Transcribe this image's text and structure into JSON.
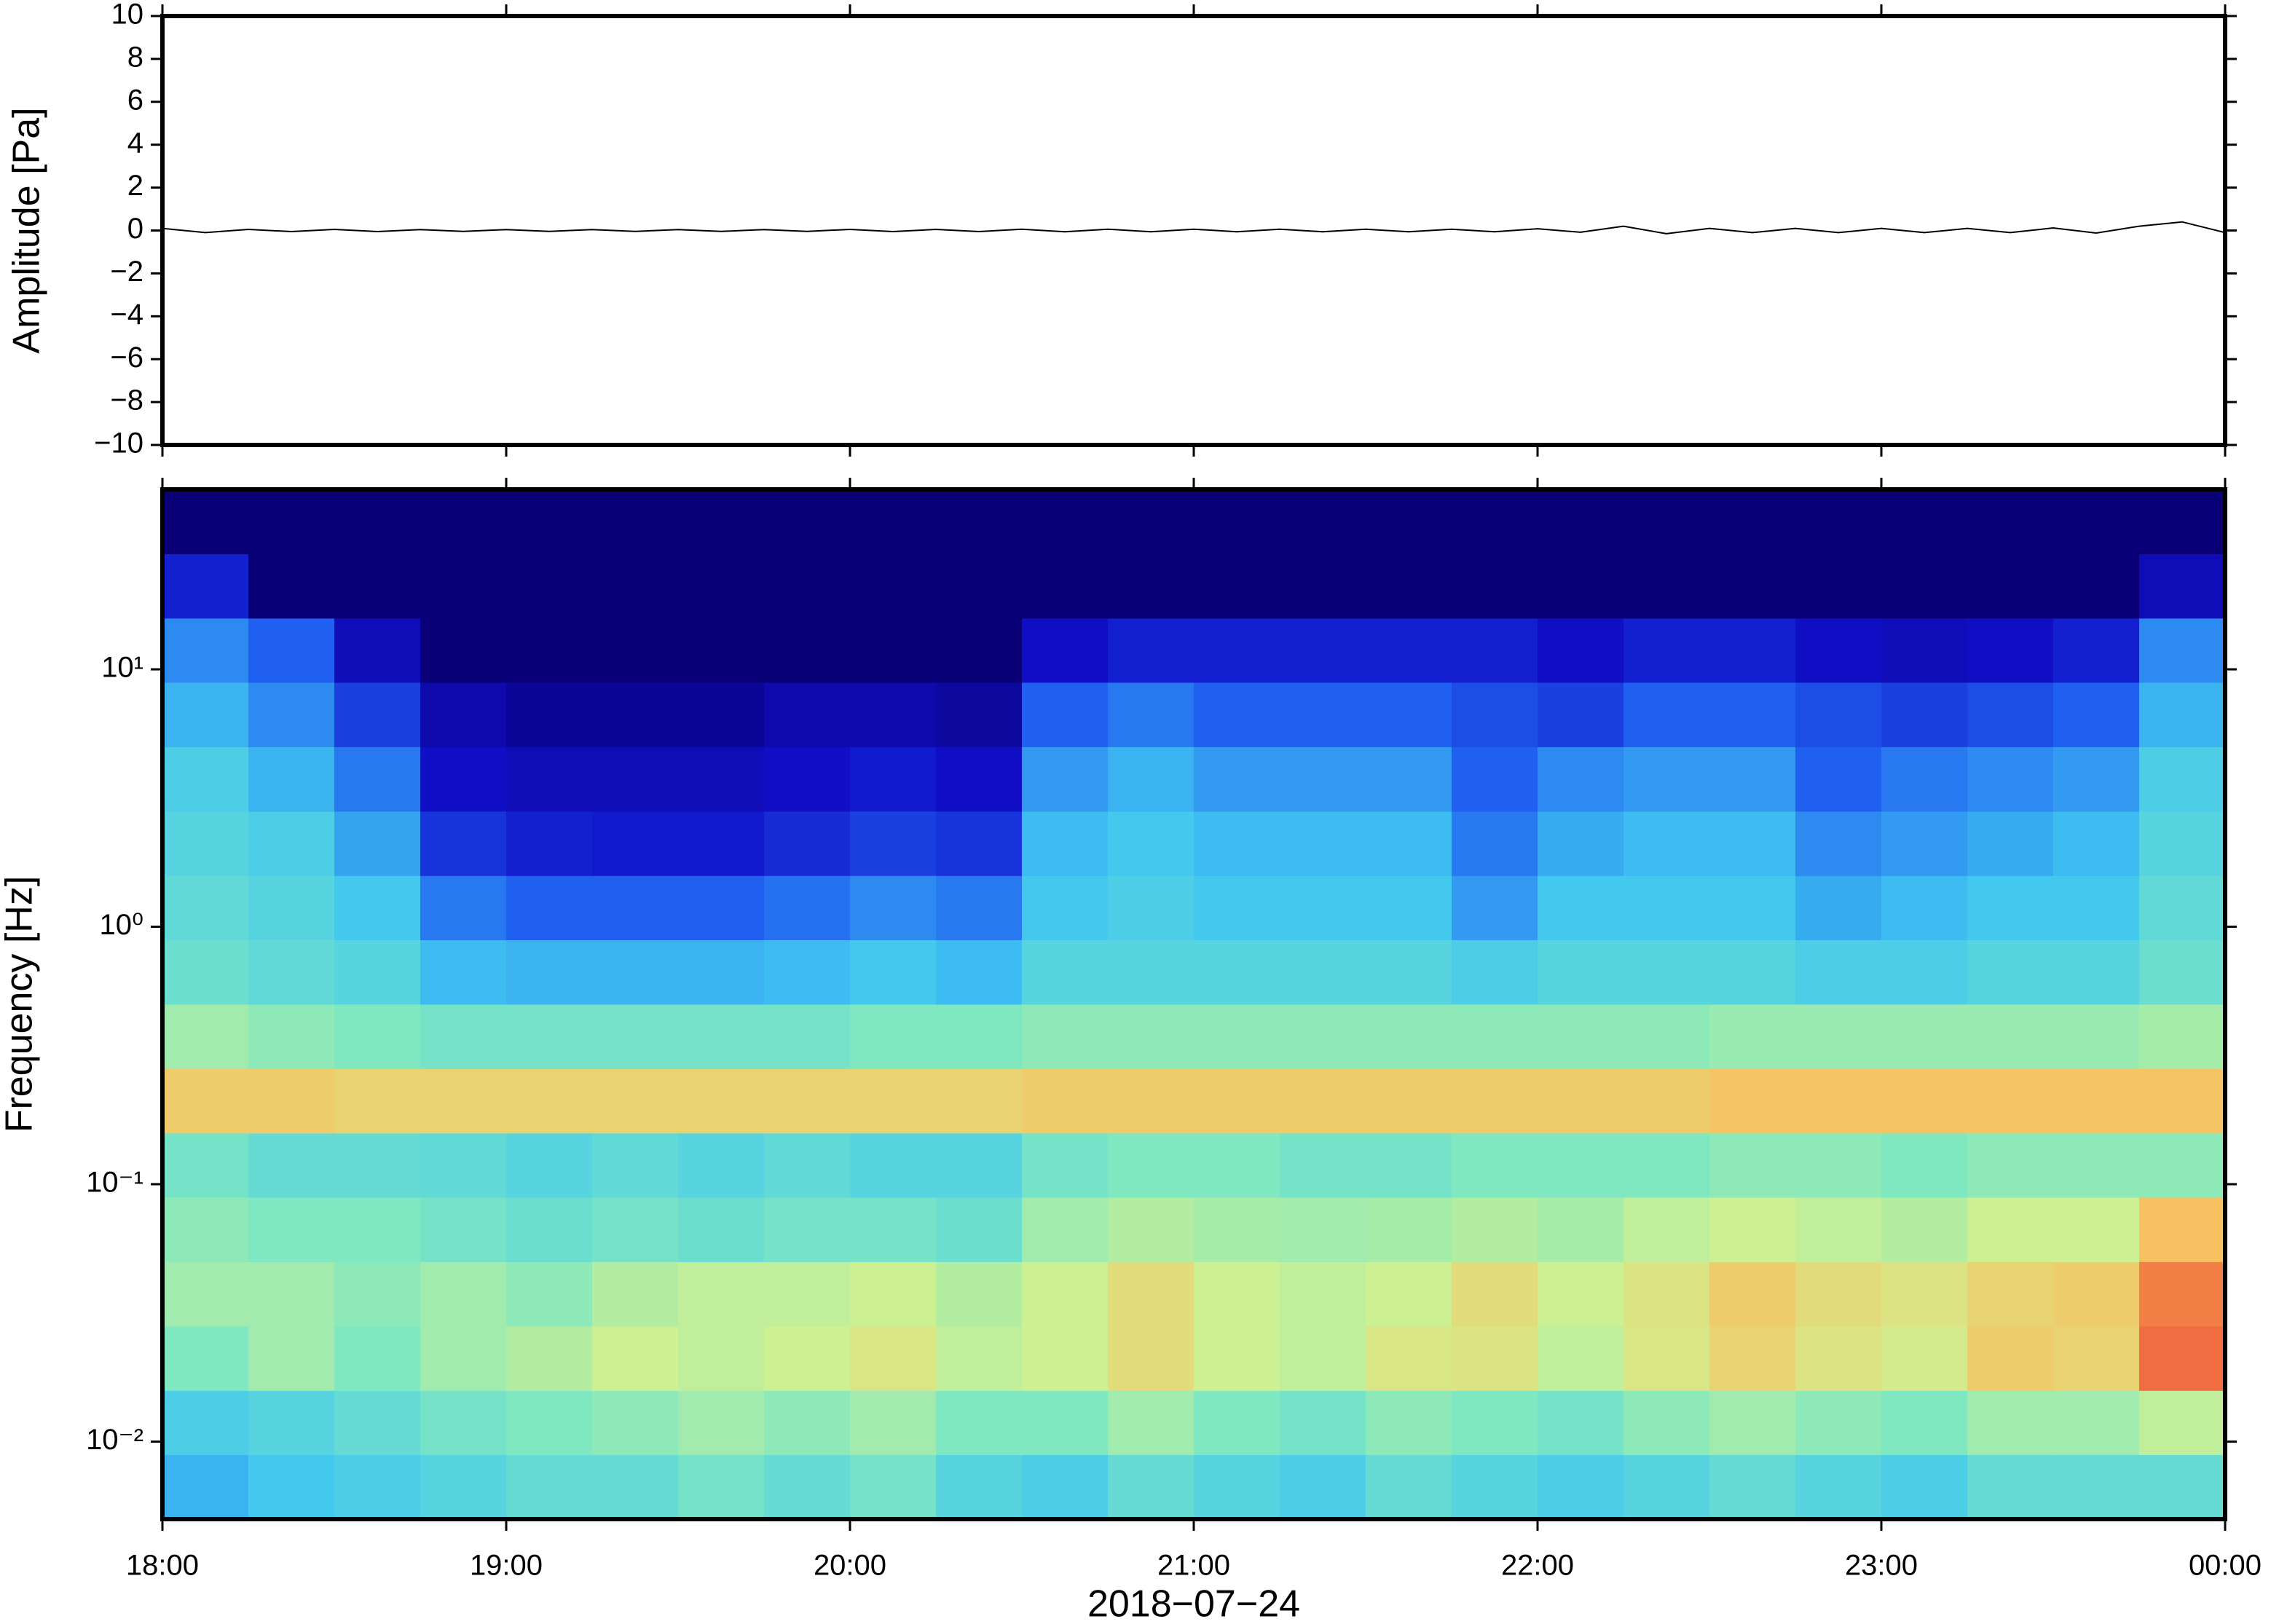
{
  "chart_data": [
    {
      "type": "line",
      "ylabel": "Amplitude [Pa]",
      "color": "#000000",
      "x": [
        18,
        18.125,
        18.25,
        18.375,
        18.5,
        18.625,
        18.75,
        18.875,
        19,
        19.125,
        19.25,
        19.375,
        19.5,
        19.625,
        19.75,
        19.875,
        20,
        20.125,
        20.25,
        20.375,
        20.5,
        20.625,
        20.75,
        20.875,
        21,
        21.125,
        21.25,
        21.375,
        21.5,
        21.625,
        21.75,
        21.875,
        22,
        22.125,
        22.25,
        22.375,
        22.5,
        22.625,
        22.75,
        22.875,
        23,
        23.125,
        23.25,
        23.375,
        23.5,
        23.625,
        23.75,
        23.875,
        24
      ],
      "values": [
        0.1,
        -0.1,
        0.05,
        -0.05,
        0.05,
        -0.05,
        0.04,
        -0.04,
        0.04,
        -0.04,
        0.04,
        -0.04,
        0.04,
        -0.04,
        0.04,
        -0.04,
        0.05,
        -0.05,
        0.05,
        -0.05,
        0.06,
        -0.06,
        0.06,
        -0.06,
        0.06,
        -0.06,
        0.06,
        -0.06,
        0.06,
        -0.06,
        0.06,
        -0.06,
        0.08,
        -0.08,
        0.2,
        -0.15,
        0.1,
        -0.1,
        0.1,
        -0.1,
        0.1,
        -0.1,
        0.1,
        -0.1,
        0.12,
        -0.12,
        0.2,
        0.4,
        -0.1
      ],
      "xlim": [
        18,
        24
      ],
      "xticks": [
        18,
        19,
        20,
        21,
        22,
        23,
        24
      ],
      "ylim": [
        -10,
        10
      ],
      "yticks": [
        10,
        8,
        6,
        4,
        2,
        0,
        {
          "value": -2,
          "label": "−2"
        },
        {
          "value": -4,
          "label": "−4"
        },
        {
          "value": -6,
          "label": "−6"
        },
        {
          "value": -8,
          "label": "−8"
        },
        {
          "value": -10,
          "label": "−10"
        }
      ]
    },
    {
      "type": "heatmap",
      "ylabel": "Frequency [Hz]",
      "xlabel": "2018−07−24",
      "log_y": true,
      "xlim": [
        18,
        24
      ],
      "ylim": [
        0.005,
        50
      ],
      "xticks": [
        {
          "value": 18,
          "label": "18:00"
        },
        {
          "value": 19,
          "label": "19:00"
        },
        {
          "value": 20,
          "label": "20:00"
        },
        {
          "value": 21,
          "label": "21:00"
        },
        {
          "value": 22,
          "label": "22:00"
        },
        {
          "value": 23,
          "label": "23:00"
        },
        {
          "value": 24,
          "label": "00:00"
        }
      ],
      "yticks": [
        {
          "value": 0.01,
          "label": "10⁻²"
        },
        {
          "value": 0.1,
          "label": "10⁻¹"
        },
        {
          "value": 1,
          "label": "10⁰"
        },
        {
          "value": 10,
          "label": "10¹"
        }
      ],
      "colormap": [
        "#0a0078",
        "#1010c8",
        "#2060f0",
        "#40c8f0",
        "#80e8c0",
        "#d0f090",
        "#f8c060",
        "#f07040",
        "#d82040"
      ],
      "x_bins": [
        18,
        18.25,
        18.5,
        18.75,
        19,
        19.25,
        19.5,
        19.75,
        20,
        20.25,
        20.5,
        20.75,
        21,
        21.25,
        21.5,
        21.75,
        22,
        22.25,
        22.5,
        22.75,
        23,
        23.25,
        23.5,
        23.75,
        24
      ],
      "y_bins": [
        0.005,
        0.0089,
        0.0158,
        0.0281,
        0.05,
        0.089,
        0.158,
        0.281,
        0.5,
        0.89,
        1.58,
        2.81,
        5,
        8.9,
        15.8,
        28.1,
        50
      ],
      "values": [
        [
          0.35,
          0.38,
          0.4,
          0.42,
          0.45,
          0.45,
          0.48,
          0.45,
          0.48,
          0.42,
          0.4,
          0.45,
          0.42,
          0.4,
          0.45,
          0.42,
          0.4,
          0.42,
          0.45,
          0.42,
          0.4,
          0.45,
          0.45,
          0.45
        ],
        [
          0.4,
          0.42,
          0.45,
          0.48,
          0.5,
          0.52,
          0.55,
          0.52,
          0.55,
          0.5,
          0.5,
          0.55,
          0.5,
          0.48,
          0.52,
          0.5,
          0.48,
          0.52,
          0.55,
          0.52,
          0.5,
          0.55,
          0.55,
          0.6
        ],
        [
          0.5,
          0.55,
          0.5,
          0.55,
          0.58,
          0.62,
          0.6,
          0.62,
          0.65,
          0.6,
          0.62,
          0.68,
          0.62,
          0.6,
          0.65,
          0.66,
          0.6,
          0.65,
          0.7,
          0.66,
          0.64,
          0.72,
          0.7,
          0.88
        ],
        [
          0.55,
          0.55,
          0.52,
          0.55,
          0.52,
          0.58,
          0.6,
          0.6,
          0.62,
          0.58,
          0.62,
          0.68,
          0.62,
          0.6,
          0.62,
          0.68,
          0.62,
          0.66,
          0.72,
          0.68,
          0.66,
          0.7,
          0.72,
          0.85
        ],
        [
          0.52,
          0.5,
          0.5,
          0.48,
          0.46,
          0.48,
          0.46,
          0.48,
          0.48,
          0.46,
          0.55,
          0.58,
          0.56,
          0.55,
          0.56,
          0.58,
          0.56,
          0.6,
          0.62,
          0.6,
          0.58,
          0.62,
          0.62,
          0.75
        ],
        [
          0.48,
          0.45,
          0.45,
          0.44,
          0.42,
          0.44,
          0.42,
          0.44,
          0.42,
          0.42,
          0.48,
          0.5,
          0.5,
          0.48,
          0.48,
          0.5,
          0.5,
          0.5,
          0.52,
          0.52,
          0.5,
          0.52,
          0.52,
          0.52
        ],
        [
          0.72,
          0.72,
          0.7,
          0.7,
          0.7,
          0.7,
          0.7,
          0.7,
          0.7,
          0.7,
          0.72,
          0.72,
          0.72,
          0.72,
          0.72,
          0.72,
          0.72,
          0.72,
          0.74,
          0.74,
          0.74,
          0.74,
          0.74,
          0.74
        ],
        [
          0.55,
          0.52,
          0.5,
          0.48,
          0.48,
          0.48,
          0.48,
          0.48,
          0.5,
          0.5,
          0.52,
          0.52,
          0.52,
          0.52,
          0.52,
          0.52,
          0.52,
          0.52,
          0.54,
          0.54,
          0.54,
          0.54,
          0.54,
          0.56
        ],
        [
          0.46,
          0.44,
          0.42,
          0.36,
          0.35,
          0.35,
          0.35,
          0.36,
          0.38,
          0.36,
          0.42,
          0.42,
          0.42,
          0.42,
          0.42,
          0.4,
          0.42,
          0.42,
          0.42,
          0.4,
          0.4,
          0.42,
          0.42,
          0.46
        ],
        [
          0.44,
          0.42,
          0.38,
          0.28,
          0.25,
          0.25,
          0.25,
          0.27,
          0.3,
          0.28,
          0.38,
          0.4,
          0.38,
          0.38,
          0.38,
          0.32,
          0.38,
          0.38,
          0.38,
          0.34,
          0.36,
          0.38,
          0.38,
          0.44
        ],
        [
          0.42,
          0.4,
          0.33,
          0.18,
          0.15,
          0.14,
          0.14,
          0.17,
          0.2,
          0.18,
          0.36,
          0.38,
          0.36,
          0.36,
          0.36,
          0.28,
          0.34,
          0.36,
          0.36,
          0.3,
          0.32,
          0.34,
          0.36,
          0.42
        ],
        [
          0.4,
          0.35,
          0.28,
          0.12,
          0.1,
          0.1,
          0.1,
          0.12,
          0.14,
          0.12,
          0.32,
          0.35,
          0.32,
          0.32,
          0.32,
          0.25,
          0.3,
          0.32,
          0.32,
          0.25,
          0.28,
          0.3,
          0.32,
          0.4
        ],
        [
          0.35,
          0.3,
          0.2,
          0.08,
          0.05,
          0.05,
          0.05,
          0.08,
          0.08,
          0.06,
          0.25,
          0.28,
          0.25,
          0.25,
          0.25,
          0.22,
          0.2,
          0.25,
          0.25,
          0.22,
          0.2,
          0.22,
          0.25,
          0.35
        ],
        [
          0.3,
          0.25,
          0.1,
          0,
          0,
          0,
          0,
          0,
          0,
          0,
          0.12,
          0.15,
          0.15,
          0.15,
          0.15,
          0.15,
          0.12,
          0.15,
          0.15,
          0.12,
          0.1,
          0.12,
          0.15,
          0.3
        ],
        [
          0.15,
          0,
          0,
          0,
          0,
          0,
          0,
          0,
          0,
          0,
          0,
          0,
          0,
          0,
          0,
          0,
          0,
          0,
          0,
          0,
          0,
          0,
          0,
          0.1
        ],
        [
          0,
          0,
          0,
          0,
          0,
          0,
          0,
          0,
          0,
          0,
          0,
          0,
          0,
          0,
          0,
          0,
          0,
          0,
          0,
          0,
          0,
          0,
          0,
          0
        ]
      ]
    }
  ]
}
